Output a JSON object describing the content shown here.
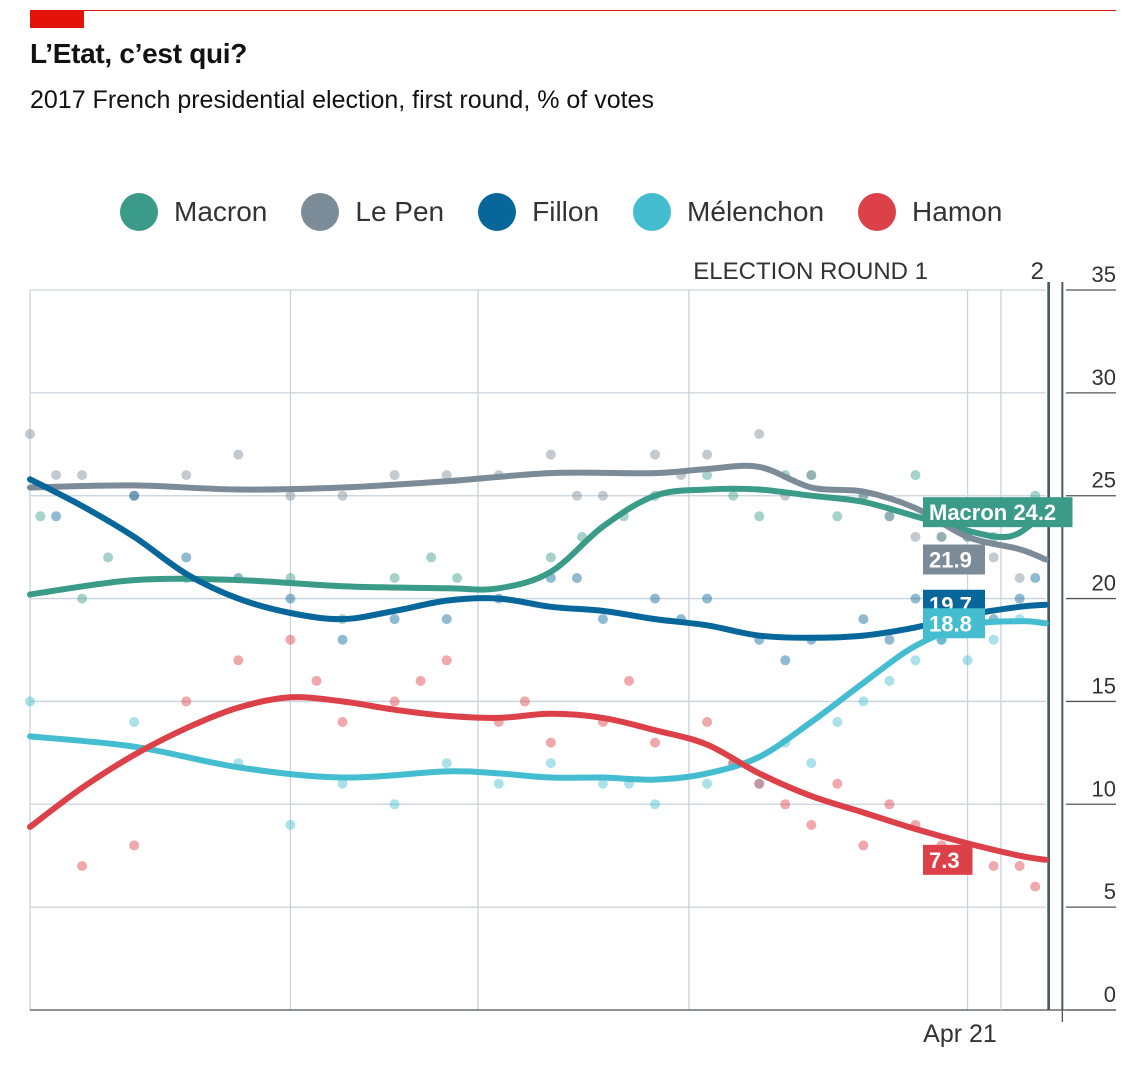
{
  "title": "L’Etat, c’est qui?",
  "subtitle": "2017 French presidential election, first round, % of votes",
  "colors": {
    "brand": "#e3120b",
    "macron": "#3a9b89",
    "le_pen": "#7b8b98",
    "fillon": "#08679a",
    "melenchon": "#45bdd1",
    "hamon": "#dc4049"
  },
  "chart_data": {
    "type": "scatter",
    "title": "L’Etat, c’est qui?",
    "subtitle": "2017 French presidential election, first round, % of votes",
    "ylim": [
      0,
      35
    ],
    "y_ticks": [
      "0",
      "5",
      "10",
      "15",
      "20",
      "25",
      "30",
      "35"
    ],
    "x_tick_label": "Apr 21",
    "round_labels": {
      "round1": "ELECTION ROUND 1",
      "round2": "2"
    },
    "grid": true,
    "legend_position": "top",
    "x_units": "weeks before election round 1",
    "series": [
      {
        "name": "Macron",
        "color": "#3a9b89",
        "end_label": "Macron 24.2",
        "trend": [
          [
            -16,
            20.2
          ],
          [
            -14,
            20.9
          ],
          [
            -12,
            20.9
          ],
          [
            -10,
            20.6
          ],
          [
            -8,
            20.5
          ],
          [
            -7,
            20.5
          ],
          [
            -6,
            21.3
          ],
          [
            -5,
            23.5
          ],
          [
            -4,
            25.0
          ],
          [
            -3,
            25.3
          ],
          [
            -2,
            25.3
          ],
          [
            -1,
            25.0
          ],
          [
            0,
            24.7
          ],
          [
            1,
            24.0
          ],
          [
            2,
            23.3
          ],
          [
            2.6,
            23.0
          ],
          [
            3,
            23.2
          ],
          [
            3.5,
            24.2
          ]
        ],
        "polls": [
          [
            -15.8,
            24
          ],
          [
            -15,
            20
          ],
          [
            -14.5,
            22
          ],
          [
            -13,
            21
          ],
          [
            -11,
            21
          ],
          [
            -10,
            19
          ],
          [
            -9,
            21
          ],
          [
            -8.3,
            22
          ],
          [
            -7.8,
            21
          ],
          [
            -6,
            22
          ],
          [
            -5.4,
            23
          ],
          [
            -4.6,
            24
          ],
          [
            -4,
            25
          ],
          [
            -3,
            26
          ],
          [
            -2.5,
            25
          ],
          [
            -2,
            24
          ],
          [
            -1.5,
            26
          ],
          [
            -1,
            26
          ],
          [
            -0.5,
            24
          ],
          [
            0,
            25
          ],
          [
            0.5,
            24
          ],
          [
            1,
            26
          ],
          [
            1.5,
            23
          ],
          [
            2,
            23
          ],
          [
            2.5,
            23
          ],
          [
            3,
            24
          ],
          [
            3.3,
            25
          ]
        ]
      },
      {
        "name": "Le Pen",
        "color": "#7b8b98",
        "end_label": "21.9",
        "trend": [
          [
            -16,
            25.4
          ],
          [
            -14,
            25.5
          ],
          [
            -12,
            25.3
          ],
          [
            -10,
            25.4
          ],
          [
            -8,
            25.7
          ],
          [
            -6,
            26.1
          ],
          [
            -4,
            26.1
          ],
          [
            -3,
            26.3
          ],
          [
            -2,
            26.4
          ],
          [
            -1,
            25.4
          ],
          [
            0,
            25.2
          ],
          [
            1,
            24.4
          ],
          [
            2,
            23.0
          ],
          [
            3,
            22.4
          ],
          [
            3.5,
            21.9
          ]
        ],
        "polls": [
          [
            -16,
            28
          ],
          [
            -15.5,
            26
          ],
          [
            -15,
            26
          ],
          [
            -14,
            25
          ],
          [
            -13,
            26
          ],
          [
            -12,
            27
          ],
          [
            -11,
            25
          ],
          [
            -10,
            25
          ],
          [
            -9,
            26
          ],
          [
            -8,
            26
          ],
          [
            -7,
            26
          ],
          [
            -6,
            27
          ],
          [
            -5.5,
            25
          ],
          [
            -5,
            25
          ],
          [
            -4,
            27
          ],
          [
            -3.5,
            26
          ],
          [
            -3,
            27
          ],
          [
            -2,
            28
          ],
          [
            -1.5,
            25
          ],
          [
            -1,
            26
          ],
          [
            0,
            25
          ],
          [
            0.5,
            24
          ],
          [
            1,
            23
          ],
          [
            1.5,
            23
          ],
          [
            2,
            23
          ],
          [
            2.5,
            22
          ],
          [
            3,
            21
          ]
        ]
      },
      {
        "name": "Fillon",
        "color": "#08679a",
        "end_label": "19.7",
        "trend": [
          [
            -16,
            25.8
          ],
          [
            -15,
            24.5
          ],
          [
            -14,
            23.0
          ],
          [
            -13,
            21.2
          ],
          [
            -12,
            20.0
          ],
          [
            -11,
            19.3
          ],
          [
            -10,
            19.0
          ],
          [
            -9,
            19.4
          ],
          [
            -8,
            19.9
          ],
          [
            -7,
            20.0
          ],
          [
            -6,
            19.6
          ],
          [
            -5,
            19.4
          ],
          [
            -4,
            19.0
          ],
          [
            -3,
            18.7
          ],
          [
            -2,
            18.2
          ],
          [
            -1,
            18.1
          ],
          [
            0,
            18.2
          ],
          [
            1,
            18.6
          ],
          [
            2,
            19.2
          ],
          [
            3,
            19.6
          ],
          [
            3.5,
            19.7
          ]
        ],
        "polls": [
          [
            -15.5,
            24
          ],
          [
            -14,
            25
          ],
          [
            -13,
            22
          ],
          [
            -12,
            21
          ],
          [
            -11,
            20
          ],
          [
            -10,
            18
          ],
          [
            -9,
            19
          ],
          [
            -8,
            19
          ],
          [
            -7,
            20
          ],
          [
            -6,
            21
          ],
          [
            -5.5,
            21
          ],
          [
            -5,
            19
          ],
          [
            -4,
            20
          ],
          [
            -3.5,
            19
          ],
          [
            -3,
            20
          ],
          [
            -2,
            18
          ],
          [
            -1.5,
            17
          ],
          [
            -1,
            18
          ],
          [
            0,
            19
          ],
          [
            0.5,
            18
          ],
          [
            1,
            20
          ],
          [
            1.5,
            18
          ],
          [
            2,
            20
          ],
          [
            2.5,
            19
          ],
          [
            3,
            20
          ],
          [
            3.3,
            21
          ]
        ]
      },
      {
        "name": "Mélenchon",
        "color": "#45bdd1",
        "end_label": "18.8",
        "trend": [
          [
            -16,
            13.3
          ],
          [
            -14,
            12.8
          ],
          [
            -12,
            11.8
          ],
          [
            -10,
            11.3
          ],
          [
            -8,
            11.6
          ],
          [
            -7,
            11.5
          ],
          [
            -6,
            11.3
          ],
          [
            -5,
            11.3
          ],
          [
            -4,
            11.2
          ],
          [
            -3,
            11.5
          ],
          [
            -2,
            12.3
          ],
          [
            -1,
            14.0
          ],
          [
            0,
            15.9
          ],
          [
            1,
            17.7
          ],
          [
            2,
            18.7
          ],
          [
            3,
            18.9
          ],
          [
            3.5,
            18.8
          ]
        ],
        "polls": [
          [
            -16,
            15
          ],
          [
            -14,
            14
          ],
          [
            -12,
            12
          ],
          [
            -11,
            9
          ],
          [
            -10,
            11
          ],
          [
            -9,
            10
          ],
          [
            -8,
            12
          ],
          [
            -7,
            11
          ],
          [
            -6,
            12
          ],
          [
            -5,
            11
          ],
          [
            -4.5,
            11
          ],
          [
            -4,
            10
          ],
          [
            -3,
            11
          ],
          [
            -2.5,
            12
          ],
          [
            -2,
            11
          ],
          [
            -1.5,
            13
          ],
          [
            -1,
            12
          ],
          [
            -0.5,
            14
          ],
          [
            0,
            15
          ],
          [
            0.5,
            16
          ],
          [
            1,
            17
          ],
          [
            1.5,
            18
          ],
          [
            2,
            17
          ],
          [
            2.5,
            18
          ],
          [
            3,
            19
          ]
        ]
      },
      {
        "name": "Hamon",
        "color": "#dc4049",
        "end_label": "7.3",
        "trend": [
          [
            -16,
            8.9
          ],
          [
            -15,
            10.8
          ],
          [
            -14,
            12.4
          ],
          [
            -13,
            13.7
          ],
          [
            -12,
            14.7
          ],
          [
            -11,
            15.2
          ],
          [
            -10,
            15.0
          ],
          [
            -9,
            14.6
          ],
          [
            -8,
            14.3
          ],
          [
            -7,
            14.2
          ],
          [
            -6,
            14.4
          ],
          [
            -5,
            14.2
          ],
          [
            -4,
            13.6
          ],
          [
            -3,
            12.9
          ],
          [
            -2,
            11.5
          ],
          [
            -1,
            10.4
          ],
          [
            0,
            9.6
          ],
          [
            1,
            8.8
          ],
          [
            2,
            8.1
          ],
          [
            3,
            7.5
          ],
          [
            3.5,
            7.3
          ]
        ],
        "polls": [
          [
            -15,
            7
          ],
          [
            -14,
            8
          ],
          [
            -13,
            15
          ],
          [
            -12,
            17
          ],
          [
            -11,
            18
          ],
          [
            -10.5,
            16
          ],
          [
            -10,
            14
          ],
          [
            -9,
            15
          ],
          [
            -8.5,
            16
          ],
          [
            -8,
            17
          ],
          [
            -7,
            14
          ],
          [
            -6.5,
            15
          ],
          [
            -6,
            13
          ],
          [
            -5,
            14
          ],
          [
            -4.5,
            16
          ],
          [
            -4,
            13
          ],
          [
            -3,
            14
          ],
          [
            -2.5,
            12
          ],
          [
            -2,
            11
          ],
          [
            -1.5,
            10
          ],
          [
            -1,
            9
          ],
          [
            -0.5,
            11
          ],
          [
            0,
            8
          ],
          [
            0.5,
            10
          ],
          [
            1,
            9
          ],
          [
            1.5,
            8
          ],
          [
            2,
            8
          ],
          [
            2.5,
            7
          ],
          [
            3,
            7
          ],
          [
            3.3,
            6
          ]
        ]
      }
    ]
  }
}
